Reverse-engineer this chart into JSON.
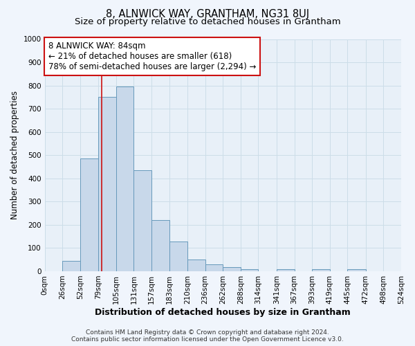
{
  "title": "8, ALNWICK WAY, GRANTHAM, NG31 8UJ",
  "subtitle": "Size of property relative to detached houses in Grantham",
  "xlabel": "Distribution of detached houses by size in Grantham",
  "ylabel": "Number of detached properties",
  "bin_edges": [
    0,
    26,
    52,
    79,
    105,
    131,
    157,
    183,
    210,
    236,
    262,
    288,
    314,
    341,
    367,
    393,
    419,
    445,
    472,
    498,
    524
  ],
  "bar_heights": [
    0,
    45,
    485,
    750,
    795,
    435,
    220,
    128,
    50,
    30,
    18,
    10,
    0,
    10,
    0,
    10,
    0,
    10,
    0,
    0
  ],
  "bar_color": "#c8d8ea",
  "bar_edgecolor": "#6699bb",
  "grid_color": "#ccdde8",
  "background_color": "#e8f0f8",
  "fig_background": "#f0f5fc",
  "vline_x": 84,
  "vline_color": "#cc1111",
  "ylim": [
    0,
    1000
  ],
  "yticks": [
    0,
    100,
    200,
    300,
    400,
    500,
    600,
    700,
    800,
    900,
    1000
  ],
  "xtick_labels": [
    "0sqm",
    "26sqm",
    "52sqm",
    "79sqm",
    "105sqm",
    "131sqm",
    "157sqm",
    "183sqm",
    "210sqm",
    "236sqm",
    "262sqm",
    "288sqm",
    "314sqm",
    "341sqm",
    "367sqm",
    "393sqm",
    "419sqm",
    "445sqm",
    "472sqm",
    "498sqm",
    "524sqm"
  ],
  "annotation_title": "8 ALNWICK WAY: 84sqm",
  "annotation_line1": "← 21% of detached houses are smaller (618)",
  "annotation_line2": "78% of semi-detached houses are larger (2,294) →",
  "annotation_box_color": "#ffffff",
  "annotation_box_edgecolor": "#cc1111",
  "footer_line1": "Contains HM Land Registry data © Crown copyright and database right 2024.",
  "footer_line2": "Contains public sector information licensed under the Open Government Licence v3.0.",
  "title_fontsize": 10.5,
  "subtitle_fontsize": 9.5,
  "xlabel_fontsize": 9,
  "ylabel_fontsize": 8.5,
  "tick_fontsize": 7.5,
  "annotation_fontsize": 8.5,
  "footer_fontsize": 6.5
}
